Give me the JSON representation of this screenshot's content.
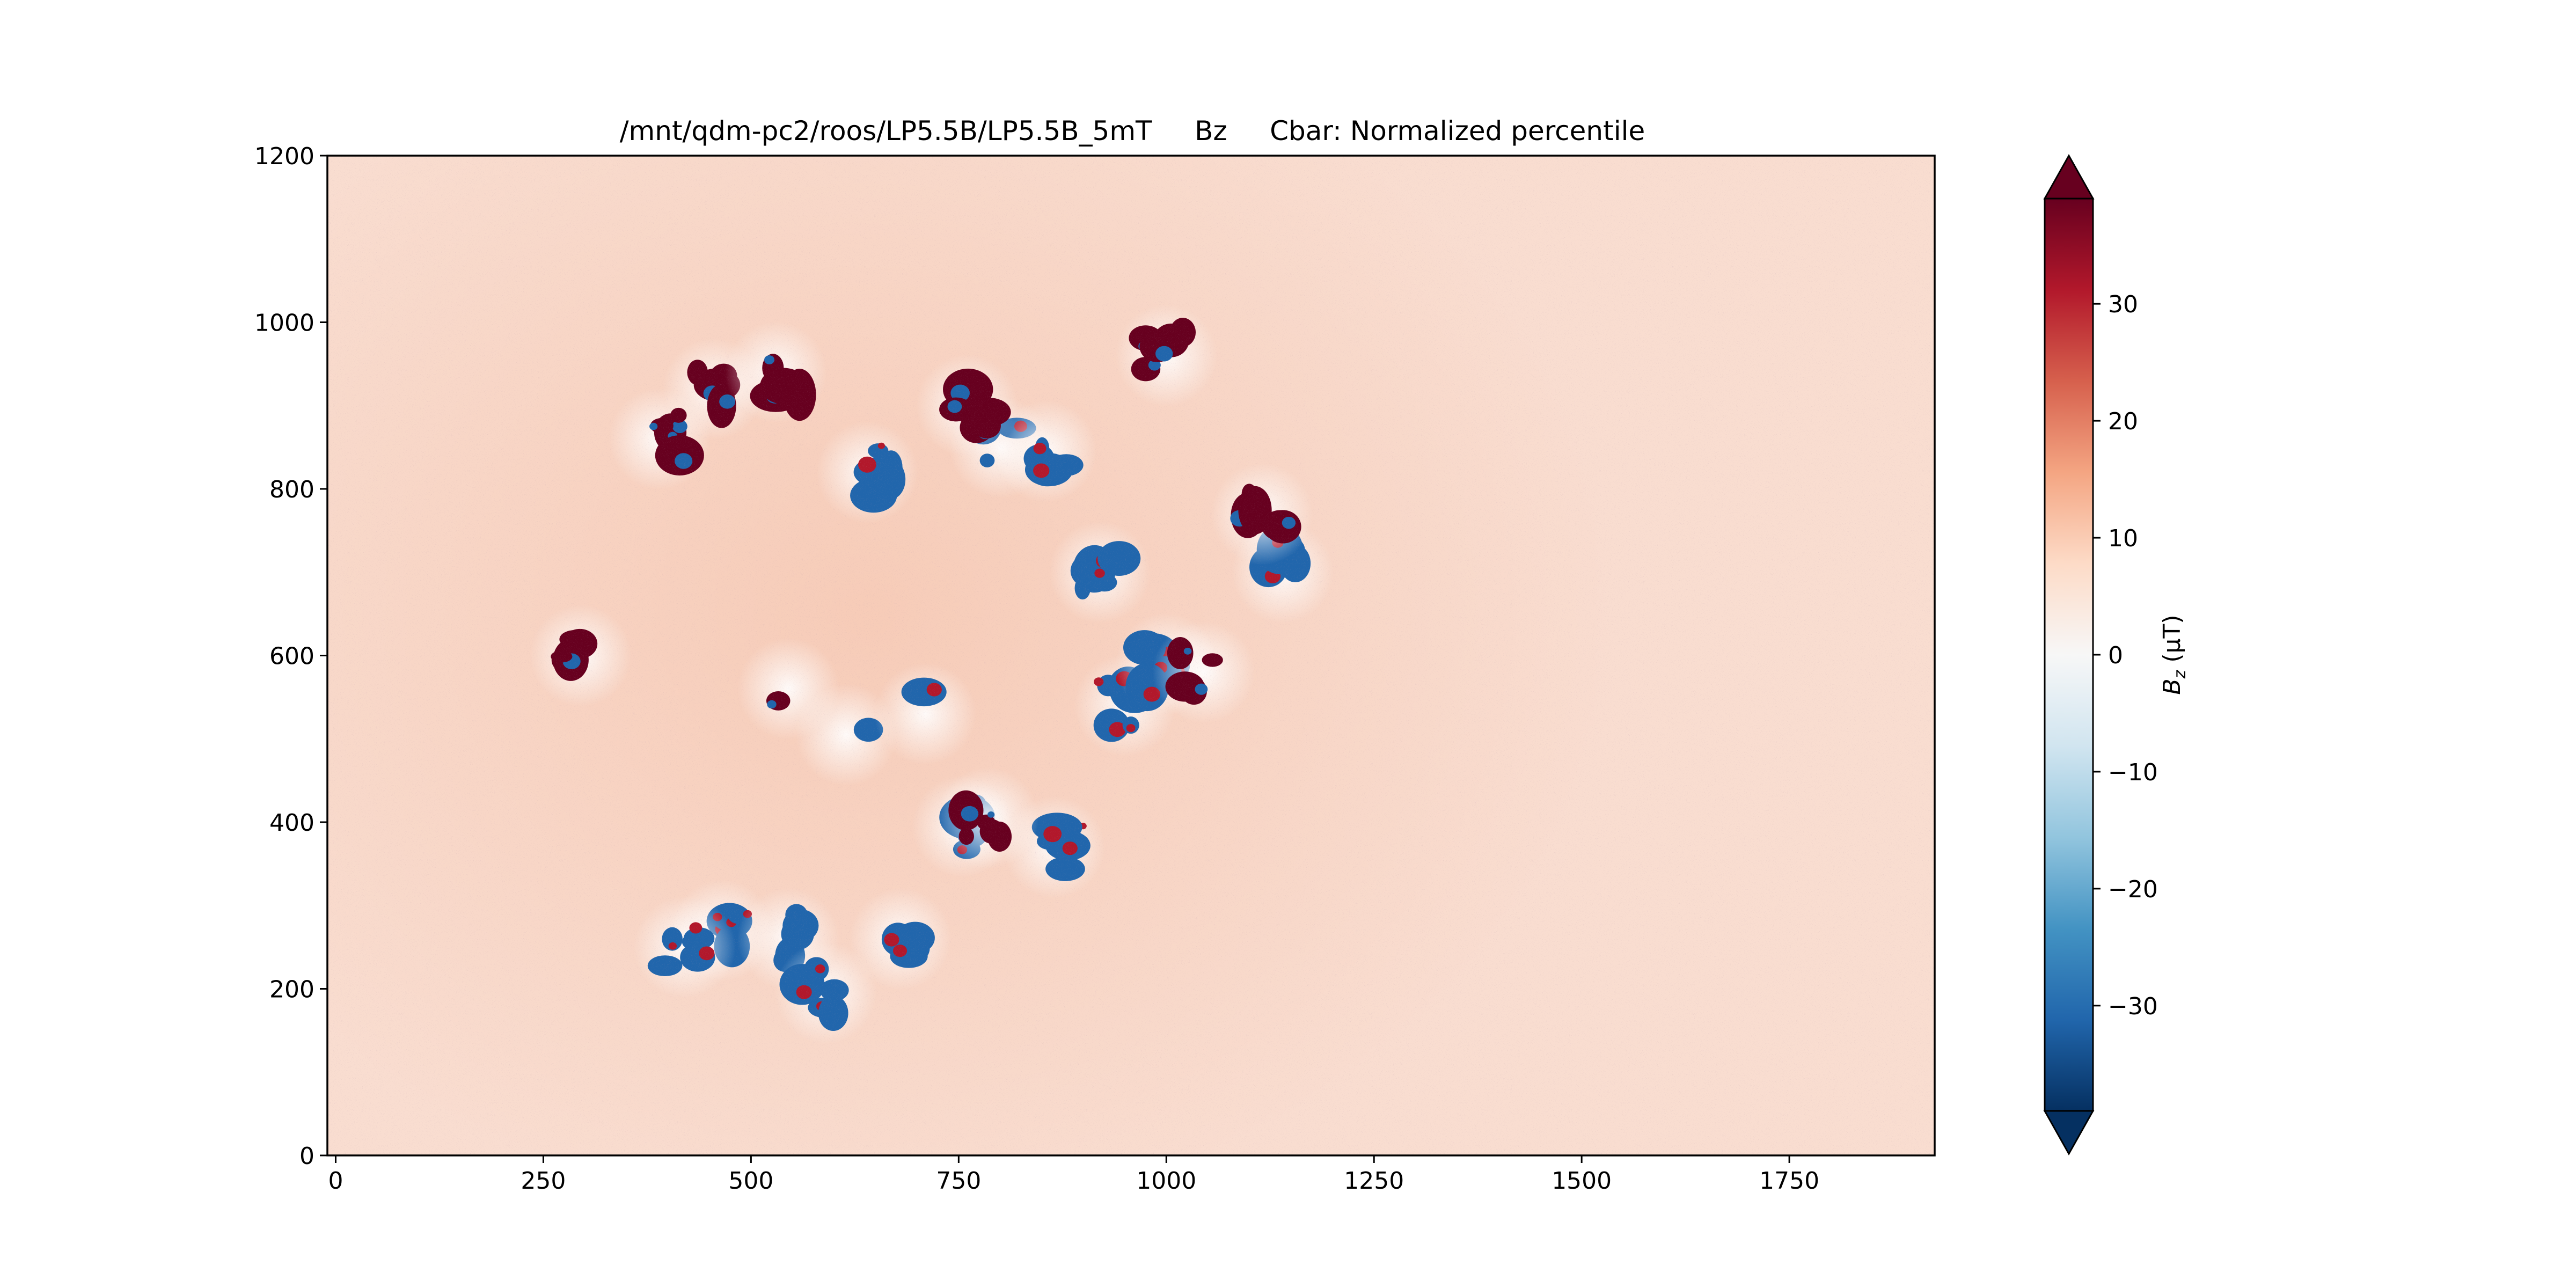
{
  "chart_data": {
    "type": "heatmap",
    "title": "/mnt/qdm-pc2/roos/LP5.5B/LP5.5B_5mT     Bz     Cbar: Normalized percentile",
    "xlabel": "",
    "ylabel": "",
    "xlim": [
      -10,
      1925
    ],
    "ylim": [
      0,
      1200
    ],
    "x_ticks": [
      0,
      250,
      500,
      750,
      1000,
      1250,
      1500,
      1750
    ],
    "y_ticks": [
      0,
      200,
      400,
      600,
      800,
      1000,
      1200
    ],
    "colormap": "RdBu_r",
    "colorbar": {
      "label": "B_z (μT)",
      "label_main": "B",
      "label_sub": "z",
      "label_rest": " (μT)",
      "range": [
        -39,
        39
      ],
      "extend": "both",
      "ticks": [
        -30,
        -20,
        -10,
        0,
        10,
        20,
        30
      ],
      "tick_labels": [
        "−30",
        "−20",
        "−10",
        "0",
        "10",
        "20",
        "30"
      ]
    },
    "background_value": 7,
    "features": [
      {
        "kind": "dipole-cluster",
        "x": 465,
        "y": 270,
        "value": -39
      },
      {
        "kind": "dipole-cluster",
        "x": 545,
        "y": 260,
        "value": -39
      },
      {
        "kind": "dipole-cluster",
        "x": 680,
        "y": 260,
        "value": -39
      },
      {
        "kind": "dipole-cluster",
        "x": 590,
        "y": 195,
        "value": -39
      },
      {
        "kind": "dipole-cluster",
        "x": 420,
        "y": 250,
        "value": -39
      },
      {
        "kind": "dipole-cluster",
        "x": 755,
        "y": 395,
        "value": -39
      },
      {
        "kind": "dipole-cluster",
        "x": 865,
        "y": 370,
        "value": -39
      },
      {
        "kind": "dipole-cluster",
        "x": 950,
        "y": 540,
        "value": -39
      },
      {
        "kind": "dipole-cluster",
        "x": 1000,
        "y": 590,
        "value": -39
      },
      {
        "kind": "dipole-cluster",
        "x": 640,
        "y": 820,
        "value": -39
      },
      {
        "kind": "dipole-cluster",
        "x": 800,
        "y": 850,
        "value": -39
      },
      {
        "kind": "dipole-cluster",
        "x": 855,
        "y": 845,
        "value": -39
      },
      {
        "kind": "dipole-cluster",
        "x": 920,
        "y": 700,
        "value": -39
      },
      {
        "kind": "dipole-cluster",
        "x": 1140,
        "y": 700,
        "value": -39
      },
      {
        "kind": "dipole-cluster",
        "x": 1000,
        "y": 960,
        "value": 39
      },
      {
        "kind": "dipole-cluster",
        "x": 455,
        "y": 920,
        "value": 39
      },
      {
        "kind": "dipole-cluster",
        "x": 530,
        "y": 940,
        "value": 39
      },
      {
        "kind": "dipole-cluster",
        "x": 760,
        "y": 900,
        "value": 39
      },
      {
        "kind": "dipole-cluster",
        "x": 1115,
        "y": 770,
        "value": 39
      },
      {
        "kind": "dipole-cluster",
        "x": 390,
        "y": 860,
        "value": 39
      },
      {
        "kind": "dipole-cluster",
        "x": 295,
        "y": 600,
        "value": 39
      },
      {
        "kind": "dipole-cluster",
        "x": 785,
        "y": 405,
        "value": 39
      },
      {
        "kind": "dipole-cluster",
        "x": 1045,
        "y": 580,
        "value": 39
      },
      {
        "kind": "isolated-spot",
        "x": 615,
        "y": 505,
        "value": -39
      },
      {
        "kind": "isolated-spot",
        "x": 710,
        "y": 530,
        "value": -30
      },
      {
        "kind": "isolated-spot",
        "x": 545,
        "y": 560,
        "value": 35
      }
    ]
  }
}
